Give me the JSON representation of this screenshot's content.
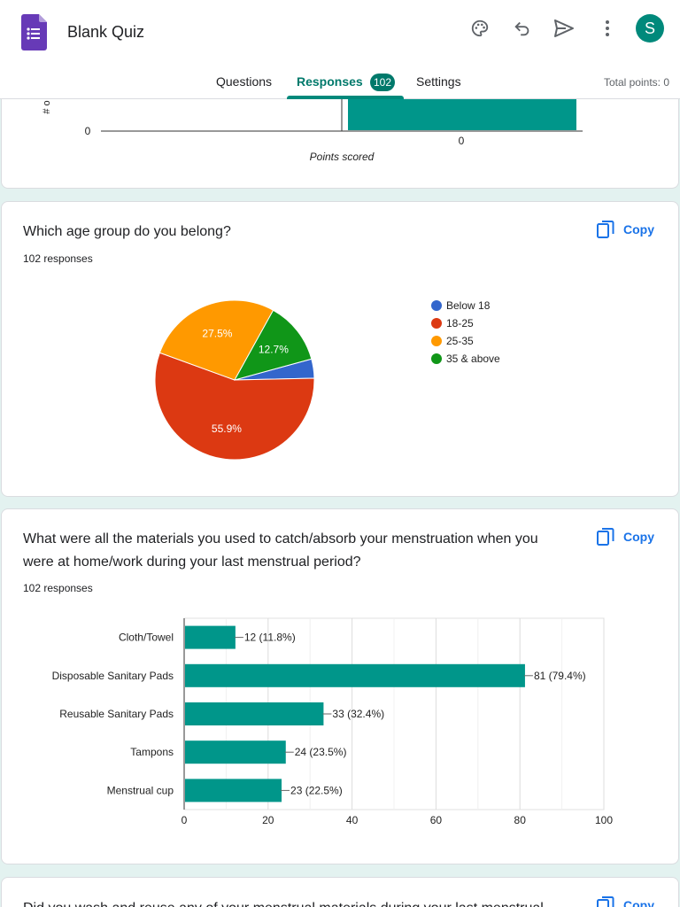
{
  "header": {
    "title": "Blank Quiz",
    "avatar_letter": "S",
    "icons": [
      "palette-icon",
      "undo-icon",
      "send-icon",
      "more-vert-icon"
    ]
  },
  "tabs": {
    "questions": "Questions",
    "responses": "Responses",
    "responses_count": "102",
    "settings": "Settings",
    "total_points": "Total points: 0"
  },
  "score_chart": {
    "y_tick": "0",
    "x_tick": "0",
    "xlabel": "Points scored",
    "ylabel": "# o"
  },
  "q1": {
    "title": "Which age group do you belong?",
    "responses": "102 responses",
    "copy": "Copy"
  },
  "q2": {
    "title": "What were all the materials you used to catch/absorb your menstruation when you were at home/work during your last menstrual period?",
    "responses": "102 responses",
    "copy": "Copy"
  },
  "q3": {
    "title": "Did you wash and reuse any of your menstrual materials during your last menstrual",
    "copy": "Copy"
  },
  "colors": {
    "teal": "#00968a",
    "blue": "#3366cc",
    "red": "#dc3912",
    "orange": "#ff9900",
    "green": "#109618"
  },
  "chart_data": [
    {
      "type": "bar",
      "categories": [
        "0"
      ],
      "values": [
        102
      ],
      "xlabel": "Points scored",
      "ylabel": "# o"
    },
    {
      "type": "pie",
      "labels": [
        "Below 18",
        "18-25",
        "25-35",
        "35 & above"
      ],
      "values": [
        3.9,
        55.9,
        27.5,
        12.7
      ],
      "slice_labels": [
        "",
        "55.9%",
        "27.5%",
        "12.7%"
      ],
      "colors": [
        "#3366cc",
        "#dc3912",
        "#ff9900",
        "#109618"
      ],
      "legend": "right"
    },
    {
      "type": "bar",
      "orientation": "horizontal",
      "categories": [
        "Cloth/Towel",
        "Disposable Sanitary Pads",
        "Reusable Sanitary Pads",
        "Tampons",
        "Menstrual cup"
      ],
      "values": [
        12,
        81,
        33,
        24,
        23
      ],
      "data_labels": [
        "12 (11.8%)",
        "81 (79.4%)",
        "33 (32.4%)",
        "24 (23.5%)",
        "23 (22.5%)"
      ],
      "xlim": [
        0,
        100
      ],
      "xticks": [
        0,
        20,
        40,
        60,
        80,
        100
      ],
      "grid": true
    }
  ]
}
